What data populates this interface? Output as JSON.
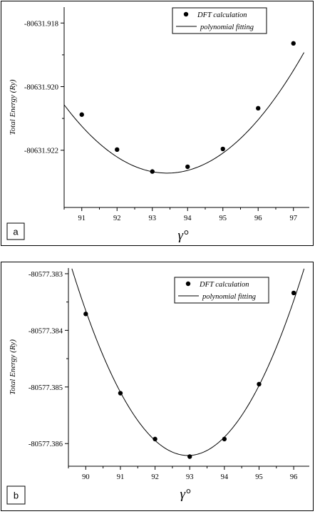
{
  "chart_data": [
    {
      "type": "scatter",
      "panel_label": "a",
      "xlabel": "γ°",
      "ylabel": "Total Energy (Ry)",
      "xlim": [
        90.5,
        97.45
      ],
      "ylim": [
        -80631.9238,
        -80631.9175
      ],
      "x_ticks": [
        91,
        92,
        93,
        94,
        95,
        96,
        97
      ],
      "x_tick_labels": [
        "91",
        "92",
        "93",
        "94",
        "95",
        "96",
        "97"
      ],
      "y_ticks": [
        -80631.918,
        -80631.92,
        -80631.922
      ],
      "y_tick_labels": [
        "-80631.918",
        "-80631.920",
        "-80631.922"
      ],
      "legend_position": "top-right",
      "series": [
        {
          "name": "DFT calculation",
          "kind": "points",
          "x": [
            91,
            92,
            93,
            94,
            95,
            96,
            97
          ],
          "y": [
            -80631.92088,
            -80631.92198,
            -80631.92267,
            -80631.92252,
            -80631.92196,
            -80631.92068,
            -80631.91864
          ]
        },
        {
          "name": "polynomial fitting",
          "kind": "curve",
          "coefficients": {
            "vertex_x": 93.42,
            "vertex_y": -80631.92272,
            "a": 0.000252
          },
          "x_range": [
            90.5,
            97.3
          ]
        }
      ]
    },
    {
      "type": "scatter",
      "panel_label": "b",
      "xlabel": "γ°",
      "ylabel": "Total Energy (Ry)",
      "xlim": [
        89.5,
        96.45
      ],
      "ylim": [
        -80577.3864,
        -80577.3829
      ],
      "x_ticks": [
        90,
        91,
        92,
        93,
        94,
        95,
        96
      ],
      "x_tick_labels": [
        "90",
        "91",
        "92",
        "93",
        "94",
        "95",
        "96"
      ],
      "y_ticks": [
        -80577.383,
        -80577.384,
        -80577.385,
        -80577.386
      ],
      "y_tick_labels": [
        "-80577.383",
        "-80577.384",
        "-80577.385",
        "-80577.386"
      ],
      "legend_position": "top-right",
      "series": [
        {
          "name": "DFT calculation",
          "kind": "points",
          "x": [
            90,
            91,
            92,
            93,
            94,
            95,
            96
          ],
          "y": [
            -80577.38371,
            -80577.38511,
            -80577.38592,
            -80577.38623,
            -80577.38592,
            -80577.38495,
            -80577.38334
          ]
        },
        {
          "name": "polynomial fitting",
          "kind": "curve",
          "coefficients": {
            "vertex_x": 92.95,
            "vertex_y": -80577.38621,
            "a": 0.000294
          },
          "x_range": [
            89.6,
            96.3
          ]
        }
      ]
    }
  ]
}
